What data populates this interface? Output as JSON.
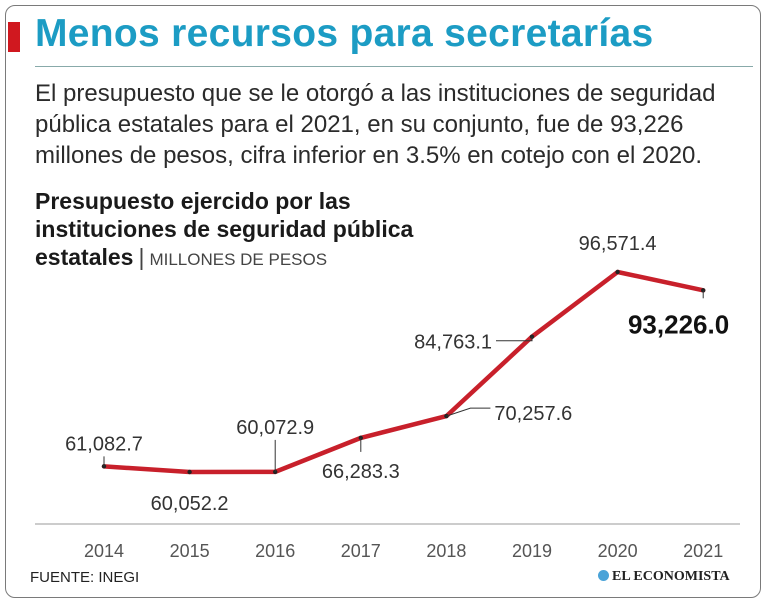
{
  "headline": "Menos recursos para secretarías",
  "lead": "El presupuesto que se le otorgó a las instituciones de seguridad pública estatales para el 2021, en su conjunto, fue de 93,226 millones de pesos, cifra inferior en 3.5% en cotejo con el 2020.",
  "chart_title_line1": "Presupuesto ejercido por las",
  "chart_title_line2": "instituciones de seguridad pública",
  "chart_title_line3": "estatales",
  "unit": "MILLONES DE PESOS",
  "source": "FUENTE: INEGI",
  "brand": "EL ECONOMISTA",
  "colors": {
    "line": "#c8202b",
    "accent": "#d0181f",
    "headline": "#1c9cc4"
  },
  "chart_data": {
    "type": "line",
    "title": "Presupuesto ejercido por las instituciones de seguridad pública estatales",
    "ylabel": "Millones de pesos",
    "categories": [
      "2014",
      "2015",
      "2016",
      "2017",
      "2018",
      "2019",
      "2020",
      "2021"
    ],
    "values": [
      61082.7,
      60052.2,
      60072.9,
      66283.3,
      70257.6,
      84763.1,
      96571.4,
      93226.0
    ],
    "labels": [
      "61,082.7",
      "60,052.2",
      "60,072.9",
      "66,283.3",
      "70,257.6",
      "84,763.1",
      "96,571.4",
      "93,226.0"
    ],
    "ylim": [
      56000,
      100000
    ],
    "grid": false
  }
}
